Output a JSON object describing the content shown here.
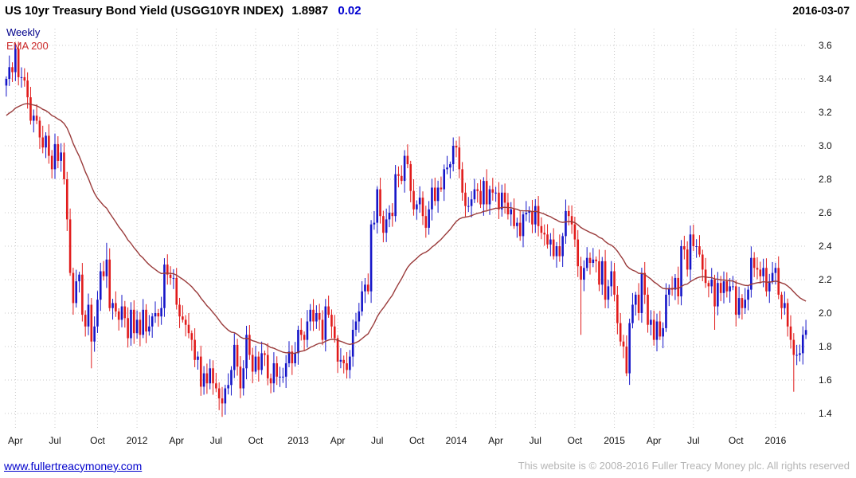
{
  "header": {
    "title": "US 10yr Treasury Bond Yield (USGG10YR INDEX)",
    "last_price": "1.8987",
    "change": "0.02",
    "date": "2016-03-07"
  },
  "footer": {
    "site_link": "www.fullertreacymoney.com",
    "copyright": "This website is © 2008-2016 Fuller Treacy Money plc. All rights reserved"
  },
  "colors": {
    "up_candle": "#1515c8",
    "down_candle": "#e11b1b",
    "ema_line": "#9a3b3b",
    "grid": "#c9c9c9",
    "axis_text": "#111111",
    "change_text": "#0000d0",
    "timeframe_text": "#00008b",
    "ema_label_text": "#cc2a2a",
    "link_text": "#0000cc",
    "copyright_text": "#b5b5b5"
  },
  "chart_data": {
    "type": "candlestick",
    "title": "US 10yr Treasury Bond Yield (USGG10YR INDEX)",
    "timeframe": "Weekly",
    "last_value": 1.8987,
    "ylim": [
      1.3,
      3.7
    ],
    "y_ticks": [
      1.4,
      1.6,
      1.8,
      2.0,
      2.2,
      2.4,
      2.6,
      2.8,
      3.0,
      3.2,
      3.4,
      3.6
    ],
    "x_ticks": [
      {
        "label": "Apr",
        "week": 3
      },
      {
        "label": "Jul",
        "week": 16
      },
      {
        "label": "Oct",
        "week": 30
      },
      {
        "label": "2012",
        "week": 43
      },
      {
        "label": "Apr",
        "week": 56
      },
      {
        "label": "Jul",
        "week": 69
      },
      {
        "label": "Oct",
        "week": 82
      },
      {
        "label": "2013",
        "week": 96
      },
      {
        "label": "Apr",
        "week": 109
      },
      {
        "label": "Jul",
        "week": 122
      },
      {
        "label": "Oct",
        "week": 135
      },
      {
        "label": "2014",
        "week": 148
      },
      {
        "label": "Apr",
        "week": 161
      },
      {
        "label": "Jul",
        "week": 174
      },
      {
        "label": "Oct",
        "week": 187
      },
      {
        "label": "2015",
        "week": 200
      },
      {
        "label": "Apr",
        "week": 213
      },
      {
        "label": "Jul",
        "week": 226
      },
      {
        "label": "Oct",
        "week": 240
      },
      {
        "label": "2016",
        "week": 253
      }
    ],
    "weekly_closes": [
      3.4,
      3.47,
      3.44,
      3.58,
      3.41,
      3.41,
      3.39,
      3.29,
      3.15,
      3.18,
      3.15,
      3.05,
      2.99,
      3.06,
      2.94,
      2.86,
      3.01,
      2.91,
      2.96,
      2.8,
      2.56,
      2.24,
      2.06,
      2.19,
      2.23,
      1.99,
      1.92,
      2.05,
      1.83,
      1.92,
      2.08,
      2.25,
      2.22,
      2.32,
      2.03,
      2.06,
      2.01,
      1.96,
      2.04,
      1.97,
      1.85,
      2.02,
      1.88,
      1.96,
      1.87,
      2.02,
      1.89,
      1.92,
      1.98,
      2.0,
      1.98,
      2.03,
      2.29,
      2.23,
      2.21,
      2.21,
      2.05,
      1.98,
      1.96,
      1.93,
      1.88,
      1.84,
      1.72,
      1.74,
      1.56,
      1.64,
      1.58,
      1.67,
      1.58,
      1.55,
      1.49,
      1.46,
      1.55,
      1.57,
      1.66,
      1.81,
      1.68,
      1.55,
      1.67,
      1.87,
      1.75,
      1.65,
      1.74,
      1.66,
      1.76,
      1.75,
      1.61,
      1.58,
      1.7,
      1.62,
      1.62,
      1.62,
      1.7,
      1.77,
      1.7,
      1.76,
      1.9,
      1.87,
      1.84,
      1.95,
      2.02,
      1.95,
      2.0,
      1.96,
      1.84,
      2.04,
      1.99,
      1.92,
      1.85,
      1.71,
      1.72,
      1.7,
      1.66,
      1.74,
      1.9,
      1.95,
      2.01,
      2.13,
      2.17,
      2.13,
      2.53,
      2.54,
      2.74,
      2.58,
      2.48,
      2.56,
      2.6,
      2.58,
      2.83,
      2.82,
      2.79,
      2.94,
      2.89,
      2.73,
      2.62,
      2.65,
      2.69,
      2.58,
      2.51,
      2.62,
      2.75,
      2.67,
      2.75,
      2.74,
      2.86,
      2.87,
      2.89,
      3.0,
      2.99,
      2.86,
      2.72,
      2.64,
      2.64,
      2.68,
      2.74,
      2.73,
      2.65,
      2.79,
      2.65,
      2.74,
      2.72,
      2.72,
      2.62,
      2.72,
      2.66,
      2.59,
      2.62,
      2.52,
      2.54,
      2.46,
      2.59,
      2.6,
      2.61,
      2.53,
      2.64,
      2.52,
      2.48,
      2.47,
      2.41,
      2.44,
      2.34,
      2.4,
      2.34,
      2.46,
      2.61,
      2.58,
      2.53,
      2.44,
      2.28,
      2.2,
      2.27,
      2.33,
      2.3,
      2.32,
      2.31,
      2.17,
      2.31,
      2.08,
      2.16,
      2.25,
      2.11,
      1.94,
      1.83,
      1.8,
      1.64,
      1.94,
      2.05,
      2.11,
      2.0,
      2.24,
      2.11,
      1.93,
      1.96,
      1.84,
      1.95,
      1.86,
      1.91,
      2.11,
      2.15,
      2.14,
      2.21,
      2.1,
      2.4,
      2.38,
      2.26,
      2.47,
      2.4,
      2.4,
      2.35,
      2.26,
      2.18,
      2.16,
      2.2,
      2.04,
      2.18,
      2.12,
      2.19,
      2.13,
      2.16,
      2.16,
      1.99,
      2.09,
      2.03,
      2.08,
      2.14,
      2.33,
      2.27,
      2.26,
      2.22,
      2.27,
      2.13,
      2.19,
      2.24,
      2.27,
      2.11,
      2.03,
      2.06,
      1.92,
      1.84,
      1.75,
      1.75,
      1.76,
      1.87,
      1.8987
    ],
    "wick_high_overrides": {
      "3": 3.61,
      "33": 2.42,
      "147": 3.05
    },
    "wick_low_overrides": {
      "28": 1.67,
      "71": 1.38,
      "189": 1.87,
      "233": 1.9,
      "259": 1.53
    },
    "ema": {
      "label": "EMA 200",
      "period_weeks": 40,
      "seed": 3.17
    }
  }
}
